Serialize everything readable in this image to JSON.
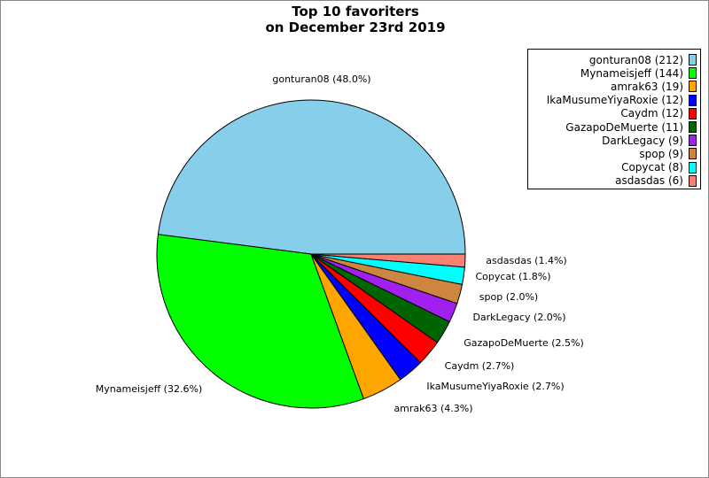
{
  "chart_data": {
    "type": "pie",
    "title": "Top 10 favoriters",
    "subtitle": "on December 23rd 2019",
    "legend_position": "top-right",
    "slices": [
      {
        "name": "gonturan08",
        "value": 212,
        "percent": "48.0%",
        "color": "#87CEEB"
      },
      {
        "name": "Mynameisjeff",
        "value": 144,
        "percent": "32.6%",
        "color": "#00FF00"
      },
      {
        "name": "amrak63",
        "value": 19,
        "percent": "4.3%",
        "color": "#FFA500"
      },
      {
        "name": "IkaMusumeYiyaRoxie",
        "value": 12,
        "percent": "2.7%",
        "color": "#0000FF"
      },
      {
        "name": "Caydm",
        "value": 12,
        "percent": "2.7%",
        "color": "#FF0000"
      },
      {
        "name": "GazapoDeMuerte",
        "value": 11,
        "percent": "2.5%",
        "color": "#006400"
      },
      {
        "name": "DarkLegacy",
        "value": 9,
        "percent": "2.0%",
        "color": "#A020F0"
      },
      {
        "name": "spop",
        "value": 9,
        "percent": "2.0%",
        "color": "#CD853F"
      },
      {
        "name": "Copycat",
        "value": 8,
        "percent": "1.8%",
        "color": "#00FFFF"
      },
      {
        "name": "asdasdas",
        "value": 6,
        "percent": "1.4%",
        "color": "#FA8072"
      }
    ]
  }
}
